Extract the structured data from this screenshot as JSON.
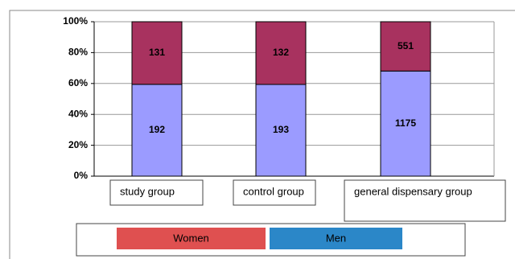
{
  "chart_data": {
    "type": "bar",
    "stacking": "percent",
    "categories": [
      "study group",
      "control group",
      "general dispensary group"
    ],
    "series": [
      {
        "name": "Women",
        "color": "#a8325f",
        "legend_color": "#df5050",
        "values": [
          131,
          132,
          551
        ]
      },
      {
        "name": "Men",
        "color": "#9b9bff",
        "legend_color": "#2b87c8",
        "values": [
          192,
          193,
          1175
        ]
      }
    ],
    "ylim": [
      0,
      100
    ],
    "yticks": [
      {
        "value": 0,
        "label": "0%"
      },
      {
        "value": 20,
        "label": "20%"
      },
      {
        "value": 40,
        "label": "40%"
      },
      {
        "value": 60,
        "label": "60%"
      },
      {
        "value": 80,
        "label": "80%"
      },
      {
        "value": 100,
        "label": "100%"
      }
    ],
    "grid": true
  }
}
